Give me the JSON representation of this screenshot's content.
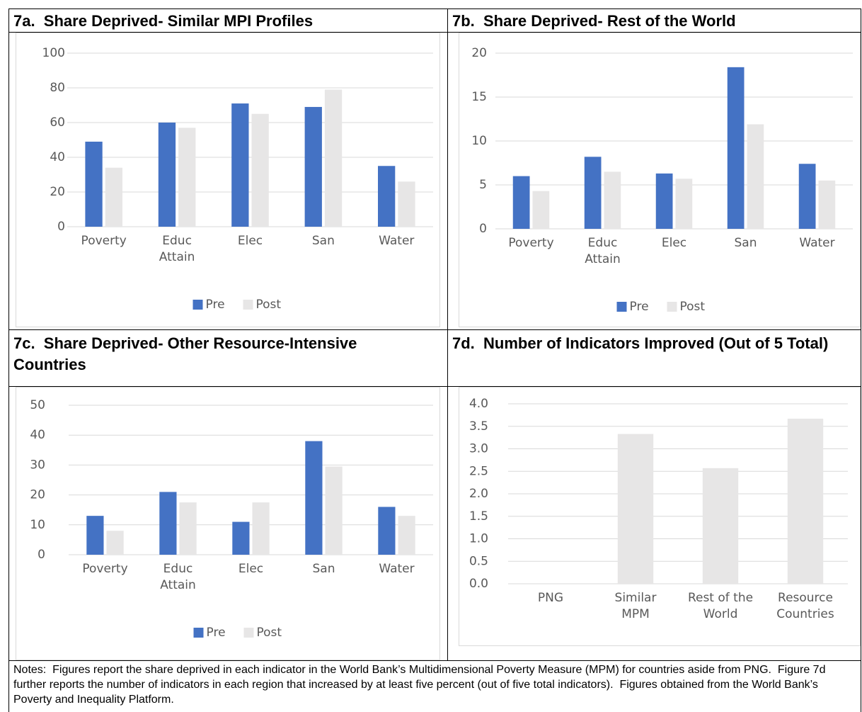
{
  "chart_data": [
    {
      "type": "bar",
      "title": "7a.  Share Deprived- Similar MPI Profiles",
      "categories": [
        "Poverty",
        "Educ Attain",
        "Elec",
        "San",
        "Water"
      ],
      "series": [
        {
          "name": "Pre",
          "color": "#4472c4",
          "values": [
            49,
            60,
            71,
            69,
            35
          ]
        },
        {
          "name": "Post",
          "color": "#e7e6e6",
          "values": [
            34,
            57,
            65,
            79,
            26
          ]
        }
      ],
      "ylim": [
        0,
        100
      ],
      "yticks": [
        0,
        20,
        40,
        60,
        80,
        100
      ],
      "grid": true,
      "legend": "bottom"
    },
    {
      "type": "bar",
      "title": "7b.  Share Deprived- Rest of the World",
      "categories": [
        "Poverty",
        "Educ Attain",
        "Elec",
        "San",
        "Water"
      ],
      "series": [
        {
          "name": "Pre",
          "color": "#4472c4",
          "values": [
            6.0,
            8.2,
            6.3,
            18.4,
            7.4
          ]
        },
        {
          "name": "Post",
          "color": "#e7e6e6",
          "values": [
            4.3,
            6.5,
            5.7,
            11.9,
            5.5
          ]
        }
      ],
      "ylim": [
        0,
        20
      ],
      "yticks": [
        0,
        5,
        10,
        15,
        20
      ],
      "grid": true,
      "legend": "bottom"
    },
    {
      "type": "bar",
      "title": "7c.  Share Deprived- Other Resource-Intensive Countries",
      "categories": [
        "Poverty",
        "Educ Attain",
        "Elec",
        "San",
        "Water"
      ],
      "series": [
        {
          "name": "Pre",
          "color": "#4472c4",
          "values": [
            13,
            21,
            11,
            38,
            16
          ]
        },
        {
          "name": "Post",
          "color": "#e7e6e6",
          "values": [
            8,
            17.5,
            17.5,
            29.5,
            13
          ]
        }
      ],
      "ylim": [
        0,
        50
      ],
      "yticks": [
        0,
        10,
        20,
        30,
        40,
        50
      ],
      "grid": true,
      "legend": "bottom"
    },
    {
      "type": "bar",
      "title": "7d.  Number of Indicators Improved (Out of 5 Total)",
      "categories": [
        "PNG",
        "Similar MPM",
        "Rest of the World",
        "Resource Countries"
      ],
      "values": [
        0,
        3.33,
        2.57,
        3.67
      ],
      "color": "#e7e6e6",
      "ylim": [
        0,
        4
      ],
      "yticks": [
        {
          "value": 0,
          "label": "0.0"
        },
        {
          "value": 0.5,
          "label": "0.5"
        },
        {
          "value": 1,
          "label": "1.0"
        },
        {
          "value": 1.5,
          "label": "1.5"
        },
        {
          "value": 2,
          "label": "2.0"
        },
        {
          "value": 2.5,
          "label": "2.5"
        },
        {
          "value": 3,
          "label": "3.0"
        },
        {
          "value": 3.5,
          "label": "3.5"
        },
        {
          "value": 4,
          "label": "4.0"
        }
      ],
      "grid": true
    }
  ],
  "notes": "Notes:  Figures report the share deprived in each indicator in the World Bank’s Multidimensional Poverty Measure (MPM) for countries aside from PNG.  Figure 7d further reports the number of indicators in each region that increased by at least five percent (out of five total indicators).  Figures obtained from the World Bank’s Poverty and Inequality Platform."
}
